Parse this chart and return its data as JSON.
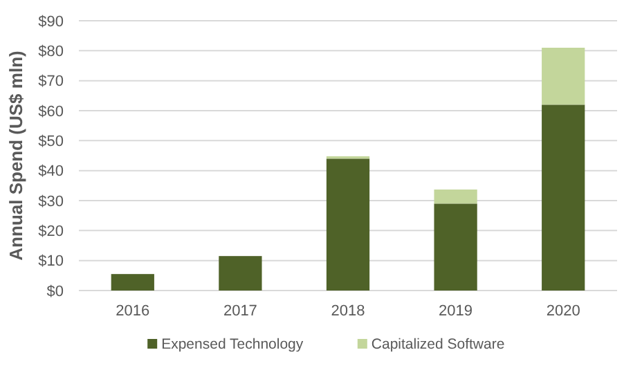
{
  "chart_data": {
    "type": "bar",
    "stacked": true,
    "ylabel": "Annual Spend (US$ mln)",
    "categories": [
      "2016",
      "2017",
      "2018",
      "2019",
      "2020"
    ],
    "series": [
      {
        "name": "Expensed Technology",
        "color": "#4f6228",
        "values": [
          5.5,
          11.5,
          44,
          29,
          62
        ]
      },
      {
        "name": "Capitalized Software",
        "color": "#c3d69b",
        "values": [
          0,
          0,
          0.8,
          4.7,
          19
        ]
      }
    ],
    "ylim": [
      0,
      90
    ],
    "yticks": [
      {
        "value": 0,
        "label": "$0"
      },
      {
        "value": 10,
        "label": "$10"
      },
      {
        "value": 20,
        "label": "$20"
      },
      {
        "value": 30,
        "label": "$30"
      },
      {
        "value": 40,
        "label": "$40"
      },
      {
        "value": 50,
        "label": "$50"
      },
      {
        "value": 60,
        "label": "$60"
      },
      {
        "value": 70,
        "label": "$70"
      },
      {
        "value": 80,
        "label": "$80"
      },
      {
        "value": 90,
        "label": "$90"
      }
    ],
    "grid": "y",
    "legend": "bottom"
  }
}
